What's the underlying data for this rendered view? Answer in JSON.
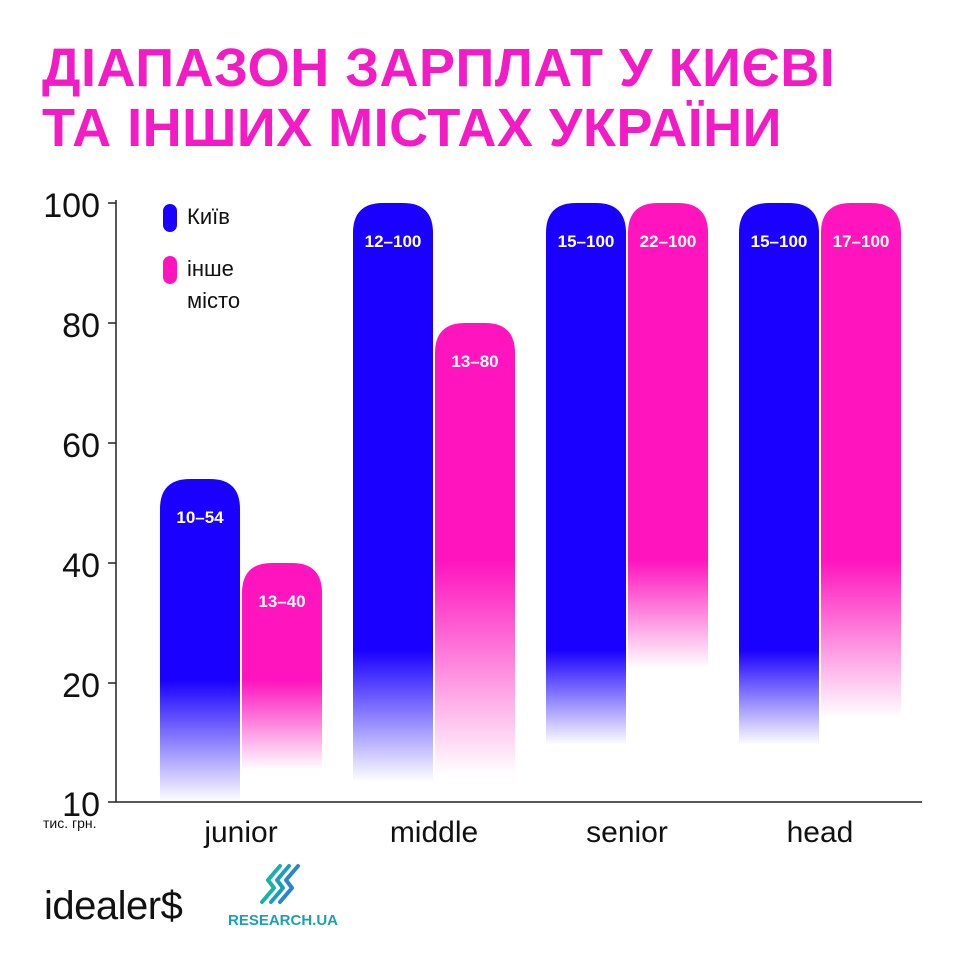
{
  "title": {
    "line1": "ДІАПАЗОН ЗАРПЛАТ У КИЄВІ",
    "line2": "ТА ІНШИХ МІСТАХ УКРАЇНИ"
  },
  "colors": {
    "kyiv": "#1a00ff",
    "other": "#ff14be",
    "title": "#f21bc6"
  },
  "chart_data": {
    "type": "bar",
    "categories": [
      "junior",
      "middle",
      "senior",
      "head"
    ],
    "series": [
      {
        "name": "Київ",
        "values": [
          54,
          100,
          100,
          100
        ],
        "labels": [
          "10–54",
          "12–100",
          "15–100",
          "15–100"
        ]
      },
      {
        "name": "інше місто",
        "values": [
          40,
          80,
          100,
          100
        ],
        "labels": [
          "13–40",
          "13–80",
          "22–100",
          "17–100"
        ]
      }
    ],
    "yticks": [
      10,
      20,
      40,
      60,
      80,
      100
    ],
    "ylim": [
      10,
      100
    ],
    "ylabel": "тис. грн.",
    "legend": {
      "placement": "top-left",
      "entries": [
        "Київ",
        "інше місто"
      ]
    },
    "grid": false
  },
  "footer": {
    "brand_left": "idealer$",
    "brand_right": "RESEARCH.UA"
  }
}
